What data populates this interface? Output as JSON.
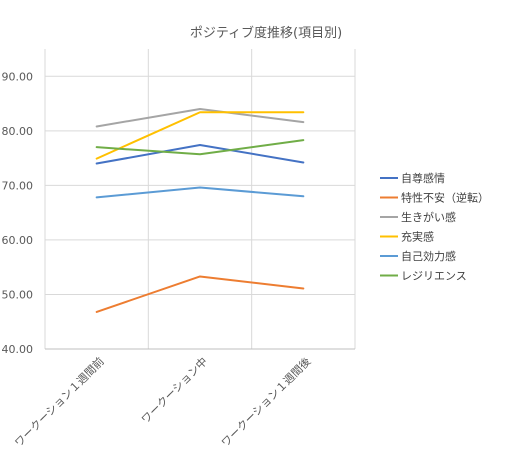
{
  "chart_data": {
    "type": "line",
    "title": "ポジティブ度推移(項目別)",
    "xlabel": "",
    "ylabel": "",
    "categories": [
      "ワークーション１週間前",
      "ワークーション中",
      "ワークーション１週間後"
    ],
    "ylim": [
      40,
      95
    ],
    "yticks": [
      "40.00",
      "50.00",
      "60.00",
      "70.00",
      "80.00",
      "90.00"
    ],
    "grid": true,
    "legend_position": "right",
    "series": [
      {
        "name": "自尊感情",
        "color": "#4472c4",
        "values": [
          74.0,
          77.4,
          74.2
        ]
      },
      {
        "name": "特性不安（逆転）",
        "color": "#ed7d31",
        "values": [
          46.8,
          53.3,
          51.1
        ]
      },
      {
        "name": "生きがい感",
        "color": "#a5a5a5",
        "values": [
          80.8,
          84.0,
          81.6
        ]
      },
      {
        "name": "充実感",
        "color": "#ffc000",
        "values": [
          74.9,
          83.4,
          83.4
        ]
      },
      {
        "name": "自己効力感",
        "color": "#5b9bd5",
        "values": [
          67.8,
          69.6,
          68.0
        ]
      },
      {
        "name": "レジリエンス",
        "color": "#70ad47",
        "values": [
          77.0,
          75.7,
          78.3
        ]
      }
    ]
  }
}
